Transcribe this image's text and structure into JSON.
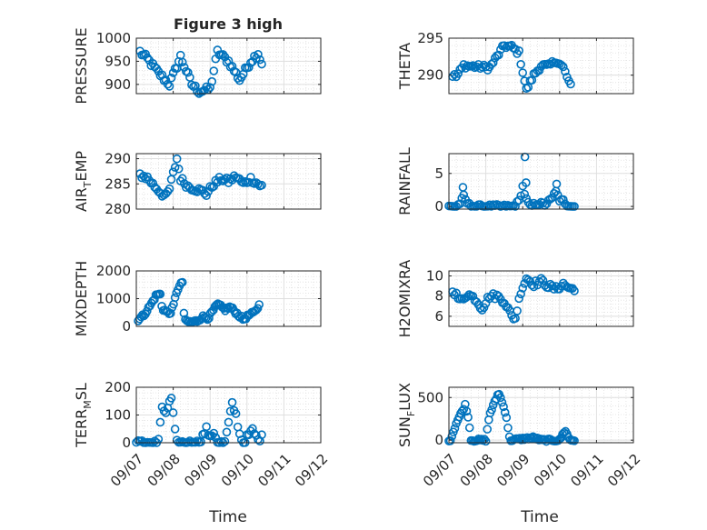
{
  "figure": {
    "title": "Figure 3 high"
  },
  "colors": {
    "marker": "#0072bd",
    "grid": "#dfdfdf",
    "axis": "#262626",
    "background": "#ffffff"
  },
  "chart_data": [
    {
      "type": "scatter",
      "ylabel": "PRESSURE",
      "ylabel_parts": [
        "PRESSURE"
      ],
      "title": "Figure 3 high",
      "ylim": [
        880,
        1000
      ],
      "yticks": [
        900,
        950,
        1000
      ],
      "yticklabels": [
        "900",
        "950",
        "1000"
      ],
      "xlim": [
        0,
        5
      ],
      "xtick_labels_shown": false,
      "grid": true,
      "keys": [
        [
          0.1,
          970
        ],
        [
          0.3,
          955
        ],
        [
          0.6,
          925
        ],
        [
          0.9,
          900
        ],
        [
          1.2,
          960
        ],
        [
          1.5,
          900
        ],
        [
          1.7,
          885
        ],
        [
          2.0,
          890
        ],
        [
          2.2,
          970
        ],
        [
          2.5,
          950
        ],
        [
          2.8,
          910
        ],
        [
          3.1,
          950
        ],
        [
          3.3,
          968
        ],
        [
          3.4,
          945
        ]
      ],
      "noise": 7,
      "sample_step": 0.05
    },
    {
      "type": "scatter",
      "ylabel": "THETA",
      "ylabel_parts": [
        "THETA"
      ],
      "ylim": [
        287.5,
        295
      ],
      "yticks": [
        290,
        295
      ],
      "yticklabels": [
        "290",
        "295"
      ],
      "xlim": [
        0,
        5
      ],
      "xtick_labels_shown": false,
      "grid": true,
      "keys": [
        [
          0.1,
          290.0
        ],
        [
          0.2,
          289.8
        ],
        [
          0.4,
          291.3
        ],
        [
          0.6,
          291.2
        ],
        [
          0.9,
          291.1
        ],
        [
          1.1,
          291.0
        ],
        [
          1.3,
          292.5
        ],
        [
          1.5,
          294.0
        ],
        [
          1.7,
          293.8
        ],
        [
          1.9,
          293.0
        ],
        [
          2.1,
          288.0
        ],
        [
          2.3,
          290.0
        ],
        [
          2.5,
          291.3
        ],
        [
          2.7,
          291.2
        ],
        [
          2.9,
          292.0
        ],
        [
          3.1,
          291.0
        ],
        [
          3.3,
          288.5
        ]
      ],
      "noise": 0.35,
      "sample_step": 0.05
    },
    {
      "type": "scatter",
      "ylabel": "AIR_TEMP",
      "ylabel_parts": [
        "AIR",
        "T",
        "EMP"
      ],
      "ylim": [
        280,
        291
      ],
      "yticks": [
        280,
        285,
        290
      ],
      "yticklabels": [
        "280",
        "285",
        "290"
      ],
      "xlim": [
        0,
        5
      ],
      "xtick_labels_shown": false,
      "grid": true,
      "keys": [
        [
          0.1,
          286.8
        ],
        [
          0.3,
          286.2
        ],
        [
          0.5,
          284.5
        ],
        [
          0.7,
          283.0
        ],
        [
          0.8,
          282.5
        ],
        [
          0.9,
          284.0
        ],
        [
          1.0,
          287.0
        ],
        [
          1.1,
          290.0
        ],
        [
          1.2,
          286.0
        ],
        [
          1.4,
          284.5
        ],
        [
          1.6,
          284.0
        ],
        [
          1.8,
          283.5
        ],
        [
          1.9,
          283.0
        ],
        [
          2.1,
          285.0
        ],
        [
          2.3,
          286.0
        ],
        [
          2.5,
          285.5
        ],
        [
          2.7,
          286.5
        ],
        [
          2.9,
          285.0
        ],
        [
          3.1,
          286.0
        ],
        [
          3.3,
          285.0
        ],
        [
          3.4,
          284.5
        ]
      ],
      "noise": 0.6,
      "sample_step": 0.05
    },
    {
      "type": "scatter",
      "ylabel": "RAINFALL",
      "ylabel_parts": [
        "RAINFALL"
      ],
      "ylim": [
        -0.4,
        8
      ],
      "yticks": [
        0,
        5
      ],
      "yticklabels": [
        "0",
        "5"
      ],
      "xlim": [
        0,
        5
      ],
      "xtick_labels_shown": false,
      "grid": true,
      "keys": [
        [
          0.0,
          0
        ],
        [
          0.2,
          0
        ],
        [
          0.3,
          0.5
        ],
        [
          0.4,
          1.5
        ],
        [
          0.5,
          0.5
        ],
        [
          0.6,
          0
        ],
        [
          1.7,
          0
        ],
        [
          1.8,
          0.2
        ],
        [
          1.9,
          0.8
        ],
        [
          2.0,
          3.0
        ],
        [
          2.1,
          1.0
        ],
        [
          2.2,
          0
        ],
        [
          2.4,
          0.5
        ],
        [
          2.6,
          0.3
        ],
        [
          2.8,
          1.2
        ],
        [
          2.9,
          2.5
        ],
        [
          3.0,
          0.6
        ],
        [
          3.1,
          1.2
        ],
        [
          3.2,
          0
        ],
        [
          3.4,
          0
        ]
      ],
      "noise": 0.3,
      "sample_step": 0.05,
      "extra_points": [
        [
          2.06,
          7.5
        ],
        [
          2.09,
          3.6
        ],
        [
          0.38,
          2.9
        ],
        [
          2.92,
          3.4
        ]
      ]
    },
    {
      "type": "scatter",
      "ylabel": "MIXDEPTH",
      "ylabel_parts": [
        "MIXDEPTH"
      ],
      "ylim": [
        0,
        2000
      ],
      "yticks": [
        0,
        1000,
        2000
      ],
      "yticklabels": [
        "0",
        "1000",
        "2000"
      ],
      "xlim": [
        0,
        5
      ],
      "xtick_labels_shown": false,
      "grid": true,
      "keys": [
        [
          0.05,
          250
        ],
        [
          0.2,
          400
        ],
        [
          0.4,
          800
        ],
        [
          0.55,
          1150
        ],
        [
          0.65,
          1150
        ],
        [
          0.7,
          650
        ],
        [
          0.9,
          450
        ],
        [
          1.0,
          700
        ],
        [
          1.1,
          1300
        ],
        [
          1.25,
          1600
        ],
        [
          1.3,
          200
        ],
        [
          1.5,
          150
        ],
        [
          1.65,
          200
        ],
        [
          1.8,
          350
        ],
        [
          1.95,
          300
        ],
        [
          2.05,
          500
        ],
        [
          2.2,
          800
        ],
        [
          2.4,
          600
        ],
        [
          2.55,
          700
        ],
        [
          2.7,
          500
        ],
        [
          2.9,
          250
        ],
        [
          3.05,
          400
        ],
        [
          3.2,
          500
        ],
        [
          3.35,
          800
        ]
      ],
      "noise": 60,
      "sample_step": 0.04
    },
    {
      "type": "scatter",
      "ylabel": "H2OMIXRA",
      "ylabel_parts": [
        "H2OMIXRA"
      ],
      "ylim": [
        5,
        10.5
      ],
      "yticks": [
        6,
        8,
        10
      ],
      "yticklabels": [
        "6",
        "8",
        "10"
      ],
      "xlim": [
        0,
        5
      ],
      "xtick_labels_shown": false,
      "grid": true,
      "keys": [
        [
          0.1,
          8.7
        ],
        [
          0.3,
          7.5
        ],
        [
          0.5,
          8.2
        ],
        [
          0.7,
          7.8
        ],
        [
          0.9,
          6.8
        ],
        [
          1.1,
          8.0
        ],
        [
          1.3,
          8.0
        ],
        [
          1.5,
          7.5
        ],
        [
          1.7,
          6.0
        ],
        [
          1.8,
          5.8
        ],
        [
          1.95,
          8.5
        ],
        [
          2.1,
          9.8
        ],
        [
          2.3,
          9.2
        ],
        [
          2.5,
          9.5
        ],
        [
          2.7,
          9.0
        ],
        [
          2.9,
          8.7
        ],
        [
          3.1,
          9.2
        ],
        [
          3.3,
          8.7
        ],
        [
          3.4,
          8.8
        ]
      ],
      "noise": 0.3,
      "sample_step": 0.05
    },
    {
      "type": "scatter",
      "ylabel": "TERR_MSL",
      "ylabel_parts": [
        "TERR",
        "M",
        "SL"
      ],
      "ylim": [
        0,
        200
      ],
      "yticks": [
        0,
        100,
        200
      ],
      "yticklabels": [
        "0",
        "100",
        "200"
      ],
      "xlim": [
        0,
        5
      ],
      "xtick_labels_shown": true,
      "grid": true,
      "keys": [
        [
          0.0,
          0
        ],
        [
          0.55,
          0
        ],
        [
          0.6,
          15
        ],
        [
          0.7,
          120
        ],
        [
          0.8,
          110
        ],
        [
          0.95,
          160
        ],
        [
          1.05,
          40
        ],
        [
          1.1,
          0
        ],
        [
          1.7,
          0
        ],
        [
          1.8,
          25
        ],
        [
          1.9,
          50
        ],
        [
          2.0,
          15
        ],
        [
          2.1,
          40
        ],
        [
          2.2,
          0
        ],
        [
          2.4,
          0
        ],
        [
          2.5,
          70
        ],
        [
          2.6,
          140
        ],
        [
          2.7,
          100
        ],
        [
          2.8,
          30
        ],
        [
          2.9,
          0
        ],
        [
          3.0,
          20
        ],
        [
          3.15,
          45
        ],
        [
          3.3,
          10
        ],
        [
          3.4,
          20
        ]
      ],
      "noise": 10,
      "sample_step": 0.05
    },
    {
      "type": "scatter",
      "ylabel": "SUN_FLUX",
      "ylabel_parts": [
        "SUN",
        "F",
        "LUX"
      ],
      "ylim": [
        -30,
        620
      ],
      "yticks": [
        0,
        500
      ],
      "yticklabels": [
        "0",
        "500"
      ],
      "xlim": [
        0,
        5
      ],
      "xtick_labels_shown": true,
      "grid": true,
      "keys": [
        [
          0.0,
          0
        ],
        [
          0.05,
          10
        ],
        [
          0.2,
          200
        ],
        [
          0.45,
          420
        ],
        [
          0.55,
          200
        ],
        [
          0.6,
          0
        ],
        [
          1.0,
          0
        ],
        [
          1.1,
          300
        ],
        [
          1.35,
          560
        ],
        [
          1.55,
          300
        ],
        [
          1.65,
          0
        ],
        [
          2.3,
          30
        ],
        [
          2.5,
          0
        ],
        [
          3.0,
          0
        ],
        [
          3.05,
          40
        ],
        [
          3.15,
          120
        ],
        [
          3.25,
          20
        ],
        [
          3.3,
          0
        ],
        [
          3.4,
          0
        ]
      ],
      "noise": 15,
      "sample_step": 0.04
    }
  ],
  "x_axis": {
    "label": "Time",
    "ticks": [
      0,
      1,
      2,
      3,
      4,
      5
    ],
    "ticklabels": [
      "09/07",
      "09/08",
      "09/09",
      "09/10",
      "09/11",
      "09/12"
    ]
  }
}
